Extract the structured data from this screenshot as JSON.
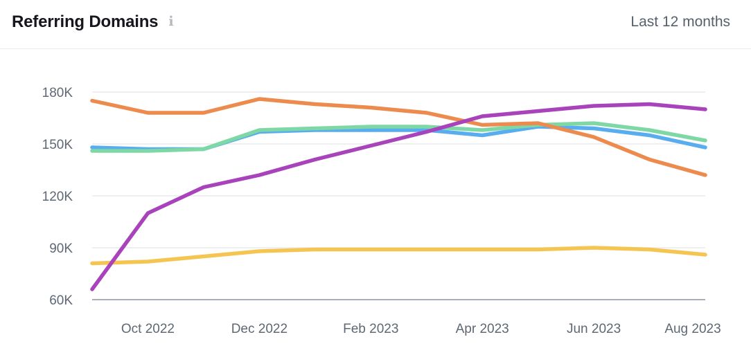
{
  "header": {
    "title": "Referring Domains",
    "info_icon": "i",
    "period": "Last 12 months"
  },
  "colors": {
    "grid": "#e8eaee",
    "axis": "#a9aeb6",
    "tick_text": "#5e6874",
    "title_text": "#15171c",
    "period_text": "#565f6c",
    "info_icon": "#b2b7c0",
    "divider": "#e7e9ec"
  },
  "chart_data": {
    "type": "line",
    "title": "Referring Domains",
    "xlabel": "",
    "ylabel": "",
    "grid": "horizontal",
    "legend_position": "none",
    "ylim": [
      60000,
      180000
    ],
    "y_ticks": [
      {
        "value": 60000,
        "label": "60K"
      },
      {
        "value": 90000,
        "label": "90K"
      },
      {
        "value": 120000,
        "label": "120K"
      },
      {
        "value": 150000,
        "label": "150K"
      },
      {
        "value": 180000,
        "label": "180K"
      }
    ],
    "x": [
      "Sep 2022",
      "Oct 2022",
      "Nov 2022",
      "Dec 2022",
      "Jan 2023",
      "Feb 2023",
      "Mar 2023",
      "Apr 2023",
      "May 2023",
      "Jun 2023",
      "Jul 2023",
      "Aug 2023"
    ],
    "x_tick_indices": [
      1,
      3,
      5,
      7,
      9,
      11
    ],
    "x_tick_labels": [
      "Oct 2022",
      "Dec 2022",
      "Feb 2023",
      "Apr 2023",
      "Jun 2023",
      "Aug 2023"
    ],
    "series": [
      {
        "name": "yellow",
        "color": "#f5c451",
        "values": [
          81000,
          82000,
          85000,
          88000,
          89000,
          89000,
          89000,
          89000,
          89000,
          90000,
          89000,
          86000
        ]
      },
      {
        "name": "blue",
        "color": "#58acf0",
        "values": [
          148000,
          147000,
          147000,
          157000,
          158000,
          158000,
          158000,
          155000,
          160000,
          159000,
          155000,
          148000
        ]
      },
      {
        "name": "green",
        "color": "#7ed8a6",
        "values": [
          146000,
          146000,
          147000,
          158000,
          159000,
          160000,
          160000,
          158000,
          161000,
          162000,
          158000,
          152000
        ]
      },
      {
        "name": "orange",
        "color": "#ec8b4d",
        "values": [
          175000,
          168000,
          168000,
          176000,
          173000,
          171000,
          168000,
          161000,
          162000,
          154000,
          141000,
          132000
        ]
      },
      {
        "name": "purple",
        "color": "#a843bc",
        "values": [
          66000,
          110000,
          125000,
          132000,
          141000,
          149000,
          157000,
          166000,
          169000,
          172000,
          173000,
          170000
        ]
      }
    ]
  }
}
